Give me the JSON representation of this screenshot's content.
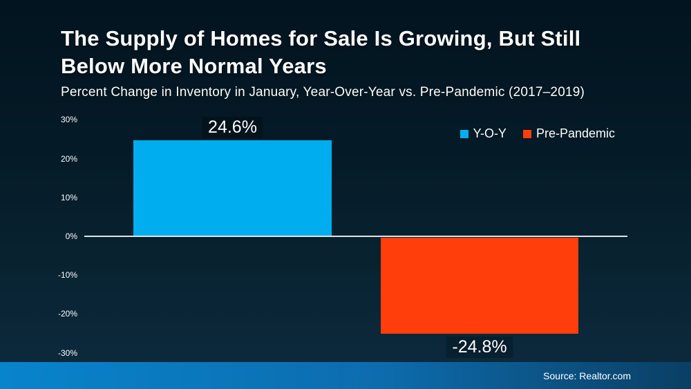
{
  "title": {
    "lines": [
      "The Supply of Homes for Sale Is Growing, But Still",
      "Below More Normal Years"
    ]
  },
  "subtitle": "Percent Change in Inventory in January, Year-Over-Year vs. Pre-Pandemic (2017–2019)",
  "source_bar": {
    "text": "Source: Realtor.com"
  },
  "legend": {
    "items": [
      {
        "label": "Y-O-Y",
        "color": "#00AEEF"
      },
      {
        "label": "Pre-Pandemic",
        "color": "#FF3E0C"
      }
    ]
  },
  "chart_data": {
    "type": "bar",
    "title": "The Supply of Homes for Sale Is Growing, But Still Below More Normal Years",
    "subtitle": "Percent Change in Inventory in January, Year-Over-Year vs. Pre-Pandemic (2017–2019)",
    "categories": [
      "Y-O-Y",
      "Pre-Pandemic"
    ],
    "values": [
      24.6,
      -24.8
    ],
    "data_labels": [
      "24.6%",
      "-24.8%"
    ],
    "series_colors": [
      "#00AEEF",
      "#FF3E0C"
    ],
    "xlabel": "",
    "ylabel": "",
    "ylim": [
      -30,
      30
    ],
    "y_tick_values": [
      30,
      20,
      10,
      0,
      -10,
      -20,
      -30
    ],
    "y_tick_labels": [
      "30%",
      "20%",
      "10%",
      "0%",
      "-10%",
      "-20%",
      "-30%"
    ],
    "grid": false,
    "zero_line": true,
    "legend_position": "top-right"
  },
  "colors": {
    "background_top": "#021420",
    "background_bottom": "#0d2b40",
    "bar_positive": "#00AEEF",
    "bar_negative": "#FF3E0C",
    "axis_line": "#dfe5ea",
    "text": "#ffffff",
    "footer_left": "#0884cc",
    "footer_right": "#0a3f64"
  }
}
